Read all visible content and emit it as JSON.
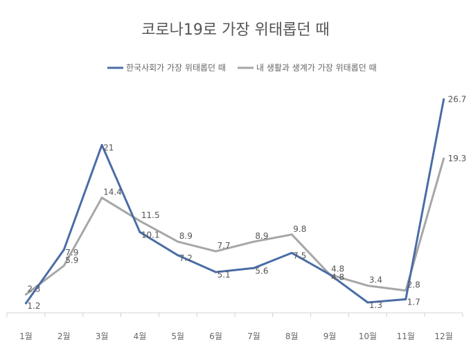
{
  "chart_data": {
    "type": "line",
    "title": "코로나19로 가장 위태롭던 때",
    "categories": [
      "1월",
      "2월",
      "3월",
      "4월",
      "5월",
      "6월",
      "7월",
      "8월",
      "9월",
      "10월",
      "11월",
      "12월"
    ],
    "series": [
      {
        "name": "한국사회가 가장 위태롭던 때",
        "color": "#4a6ca6",
        "values": [
          1.2,
          7.9,
          21,
          10.1,
          7.2,
          5.1,
          5.6,
          7.5,
          4.8,
          1.3,
          1.7,
          26.7
        ]
      },
      {
        "name": "내 생활과 생계가 가장 위태롭던 때",
        "color": "#a6a6a6",
        "values": [
          2.3,
          5.9,
          14.4,
          11.5,
          8.9,
          7.7,
          8.9,
          9.8,
          4.8,
          3.4,
          2.8,
          19.3
        ]
      }
    ],
    "ylim": [
      0,
      30
    ],
    "grid": false,
    "legend_position": "top"
  }
}
